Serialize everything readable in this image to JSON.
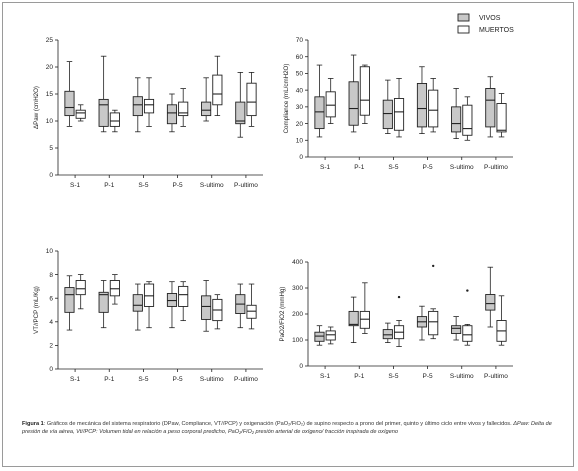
{
  "legend": {
    "items": [
      {
        "label": "VIVOS",
        "color": "#c8c8c8"
      },
      {
        "label": "MUERTOS",
        "color": "#ffffff"
      }
    ]
  },
  "caption": {
    "lead": "Figura 1",
    "main": ": Gráficos de mecánica del sistema respiratorio (DPaw, Compliance, VT//PCP) y oxigenación (PaO₂/FiO₂) de supino respecto a prono del primer, quinto y último ciclo entre vivos y fallecidos.",
    "notes": "ΔPaw: Delta de presión de vía aérea, Vt//PCP: Volumen tidal en relación a peso corporal predicho, PaO₂/FiO₂ presión arterial de oxígeno/ fracción inspirada de oxígeno"
  },
  "chart_data": [
    {
      "type": "box",
      "panel": "dpaw",
      "ylabel": "ΔPaw (cmH2O)",
      "ylim": [
        0,
        25
      ],
      "yticks": [
        0,
        5,
        10,
        15,
        20,
        25
      ],
      "categories": [
        "S-1",
        "P-1",
        "S-5",
        "P-5",
        "S-ultimo",
        "P-ultimo"
      ],
      "series": [
        {
          "name": "VIVOS",
          "boxes": [
            {
              "min": 9,
              "q1": 11,
              "median": 12.5,
              "q3": 15.5,
              "max": 21
            },
            {
              "min": 8,
              "q1": 9,
              "median": 13,
              "q3": 14,
              "max": 22
            },
            {
              "min": 8,
              "q1": 11,
              "median": 13,
              "q3": 14.5,
              "max": 18
            },
            {
              "min": 8,
              "q1": 9.5,
              "median": 11.5,
              "q3": 13,
              "max": 15
            },
            {
              "min": 10,
              "q1": 11,
              "median": 12,
              "q3": 13.5,
              "max": 18
            },
            {
              "min": 7,
              "q1": 9.5,
              "median": 10,
              "q3": 13.5,
              "max": 19
            }
          ]
        },
        {
          "name": "MUERTOS",
          "boxes": [
            {
              "min": 10,
              "q1": 10.5,
              "median": 11.5,
              "q3": 12,
              "max": 13
            },
            {
              "min": 8,
              "q1": 9,
              "median": 10,
              "q3": 11.5,
              "max": 12
            },
            {
              "min": 9,
              "q1": 11.5,
              "median": 13,
              "q3": 14,
              "max": 18
            },
            {
              "min": 9,
              "q1": 11,
              "median": 11.5,
              "q3": 13.5,
              "max": 16
            },
            {
              "min": 11,
              "q1": 13,
              "median": 15,
              "q3": 18.5,
              "max": 22
            },
            {
              "min": 9,
              "q1": 11,
              "median": 13.5,
              "q3": 17,
              "max": 19
            }
          ]
        }
      ]
    },
    {
      "type": "box",
      "panel": "compliance",
      "ylabel": "Compliance (mL/cmH2O)",
      "ylim": [
        0,
        70
      ],
      "yticks": [
        0,
        10,
        20,
        30,
        40,
        50,
        60,
        70
      ],
      "categories": [
        "S-1",
        "P-1",
        "S-5",
        "P-5",
        "S-ultimo",
        "P-ultimo"
      ],
      "series": [
        {
          "name": "VIVOS",
          "boxes": [
            {
              "min": 12,
              "q1": 17,
              "median": 27,
              "q3": 36,
              "max": 55
            },
            {
              "min": 15,
              "q1": 19,
              "median": 29,
              "q3": 45,
              "max": 61
            },
            {
              "min": 14,
              "q1": 17,
              "median": 26,
              "q3": 34,
              "max": 46
            },
            {
              "min": 14,
              "q1": 18,
              "median": 29,
              "q3": 44,
              "max": 54
            },
            {
              "min": 11,
              "q1": 15,
              "median": 20,
              "q3": 30,
              "max": 41
            },
            {
              "min": 12,
              "q1": 18,
              "median": 34,
              "q3": 41,
              "max": 48
            }
          ]
        },
        {
          "name": "MUERTOS",
          "boxes": [
            {
              "min": 20,
              "q1": 24,
              "median": 31,
              "q3": 39,
              "max": 47
            },
            {
              "min": 20,
              "q1": 25,
              "median": 34,
              "q3": 54,
              "max": 55
            },
            {
              "min": 12,
              "q1": 16,
              "median": 27,
              "q3": 35,
              "max": 47
            },
            {
              "min": 15,
              "q1": 18,
              "median": 28,
              "q3": 40,
              "max": 47
            },
            {
              "min": 10,
              "q1": 13,
              "median": 17,
              "q3": 31,
              "max": 36
            },
            {
              "min": 12,
              "q1": 15,
              "median": 16,
              "q3": 32,
              "max": 38
            }
          ]
        }
      ]
    },
    {
      "type": "box",
      "panel": "vt_pcp",
      "ylabel": "VT//PCP (mL/Kg)",
      "ylim": [
        0,
        10
      ],
      "yticks": [
        0,
        2,
        4,
        6,
        8,
        10
      ],
      "categories": [
        "S-1",
        "P-1",
        "S-5",
        "P-5",
        "S-ultimo",
        "P-ultimo"
      ],
      "series": [
        {
          "name": "VIVOS",
          "boxes": [
            {
              "min": 3.3,
              "q1": 4.8,
              "median": 6.3,
              "q3": 6.9,
              "max": 7.9
            },
            {
              "min": 3.5,
              "q1": 4.8,
              "median": 6.3,
              "q3": 6.5,
              "max": 7.5
            },
            {
              "min": 3.3,
              "q1": 4.9,
              "median": 5.4,
              "q3": 6.3,
              "max": 7.2
            },
            {
              "min": 3.5,
              "q1": 5.3,
              "median": 5.8,
              "q3": 6.4,
              "max": 7.4
            },
            {
              "min": 3.2,
              "q1": 4.2,
              "median": 5.3,
              "q3": 6.2,
              "max": 7.5
            },
            {
              "min": 3.5,
              "q1": 4.7,
              "median": 5.5,
              "q3": 6.3,
              "max": 7.2
            }
          ]
        },
        {
          "name": "MUERTOS",
          "boxes": [
            {
              "min": 5.1,
              "q1": 6.3,
              "median": 6.8,
              "q3": 7.5,
              "max": 8.0
            },
            {
              "min": 5.5,
              "q1": 6.2,
              "median": 6.8,
              "q3": 7.5,
              "max": 8.0
            },
            {
              "min": 3.5,
              "q1": 5.3,
              "median": 6.2,
              "q3": 7.2,
              "max": 7.4
            },
            {
              "min": 4.1,
              "q1": 5.3,
              "median": 6.3,
              "q3": 7.0,
              "max": 7.4
            },
            {
              "min": 3.4,
              "q1": 4.1,
              "median": 5.0,
              "q3": 5.9,
              "max": 6.3
            },
            {
              "min": 3.4,
              "q1": 4.3,
              "median": 4.9,
              "q3": 5.4,
              "max": 7.2
            }
          ]
        }
      ]
    },
    {
      "type": "box",
      "panel": "pafi",
      "ylabel": "PaO2/FiO2 (mmHg)",
      "ylim": [
        0,
        400
      ],
      "yticks": [
        0,
        100,
        200,
        300,
        400
      ],
      "categories": [
        "S-1",
        "P-1",
        "S-5",
        "P-5",
        "S-ultimo",
        "P-ultimo"
      ],
      "series": [
        {
          "name": "VIVOS",
          "boxes": [
            {
              "min": 80,
              "q1": 95,
              "median": 115,
              "q3": 130,
              "max": 155,
              "outliers": []
            },
            {
              "min": 90,
              "q1": 155,
              "median": 160,
              "q3": 210,
              "max": 265,
              "outliers": []
            },
            {
              "min": 90,
              "q1": 105,
              "median": 120,
              "q3": 140,
              "max": 165,
              "outliers": []
            },
            {
              "min": 100,
              "q1": 150,
              "median": 170,
              "q3": 190,
              "max": 230,
              "outliers": []
            },
            {
              "min": 100,
              "q1": 125,
              "median": 145,
              "q3": 155,
              "max": 190,
              "outliers": []
            },
            {
              "min": 150,
              "q1": 215,
              "median": 240,
              "q3": 275,
              "max": 380,
              "outliers": []
            }
          ]
        },
        {
          "name": "MUERTOS",
          "boxes": [
            {
              "min": 85,
              "q1": 100,
              "median": 120,
              "q3": 135,
              "max": 150,
              "outliers": []
            },
            {
              "min": 125,
              "q1": 145,
              "median": 180,
              "q3": 210,
              "max": 320,
              "outliers": []
            },
            {
              "min": 75,
              "q1": 105,
              "median": 130,
              "q3": 155,
              "max": 175,
              "outliers": [
                265
              ]
            },
            {
              "min": 105,
              "q1": 120,
              "median": 170,
              "q3": 210,
              "max": 220,
              "outliers": [
                385
              ]
            },
            {
              "min": 80,
              "q1": 95,
              "median": 120,
              "q3": 155,
              "max": 160,
              "outliers": [
                290
              ]
            },
            {
              "min": 80,
              "q1": 95,
              "median": 135,
              "q3": 175,
              "max": 270,
              "outliers": []
            }
          ]
        }
      ]
    }
  ]
}
